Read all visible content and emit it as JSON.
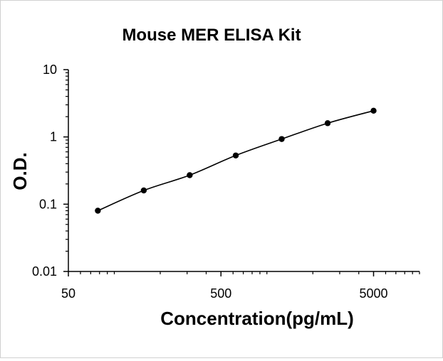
{
  "chart_data": {
    "type": "scatter",
    "title": "Mouse MER ELISA Kit",
    "xlabel": "Concentration(pg/mL)",
    "ylabel": "O.D.",
    "x_scale": "log",
    "y_scale": "log",
    "xlim": [
      50,
      10000
    ],
    "ylim": [
      0.01,
      10
    ],
    "x_tick_labels": [
      "50",
      "500",
      "5000"
    ],
    "x_tick_values": [
      50,
      500,
      5000
    ],
    "y_tick_labels": [
      "0.01",
      "0.1",
      "1",
      "10"
    ],
    "y_tick_values": [
      0.01,
      0.1,
      1,
      10
    ],
    "grid": false,
    "series": [
      {
        "x": [
          78,
          156,
          312,
          625,
          1250,
          2500,
          5000
        ],
        "y": [
          0.08,
          0.16,
          0.27,
          0.53,
          0.93,
          1.6,
          2.45
        ],
        "fit_line": true
      }
    ],
    "colors": {
      "marker": "#000000",
      "line": "#000000",
      "axis": "#000000"
    }
  }
}
